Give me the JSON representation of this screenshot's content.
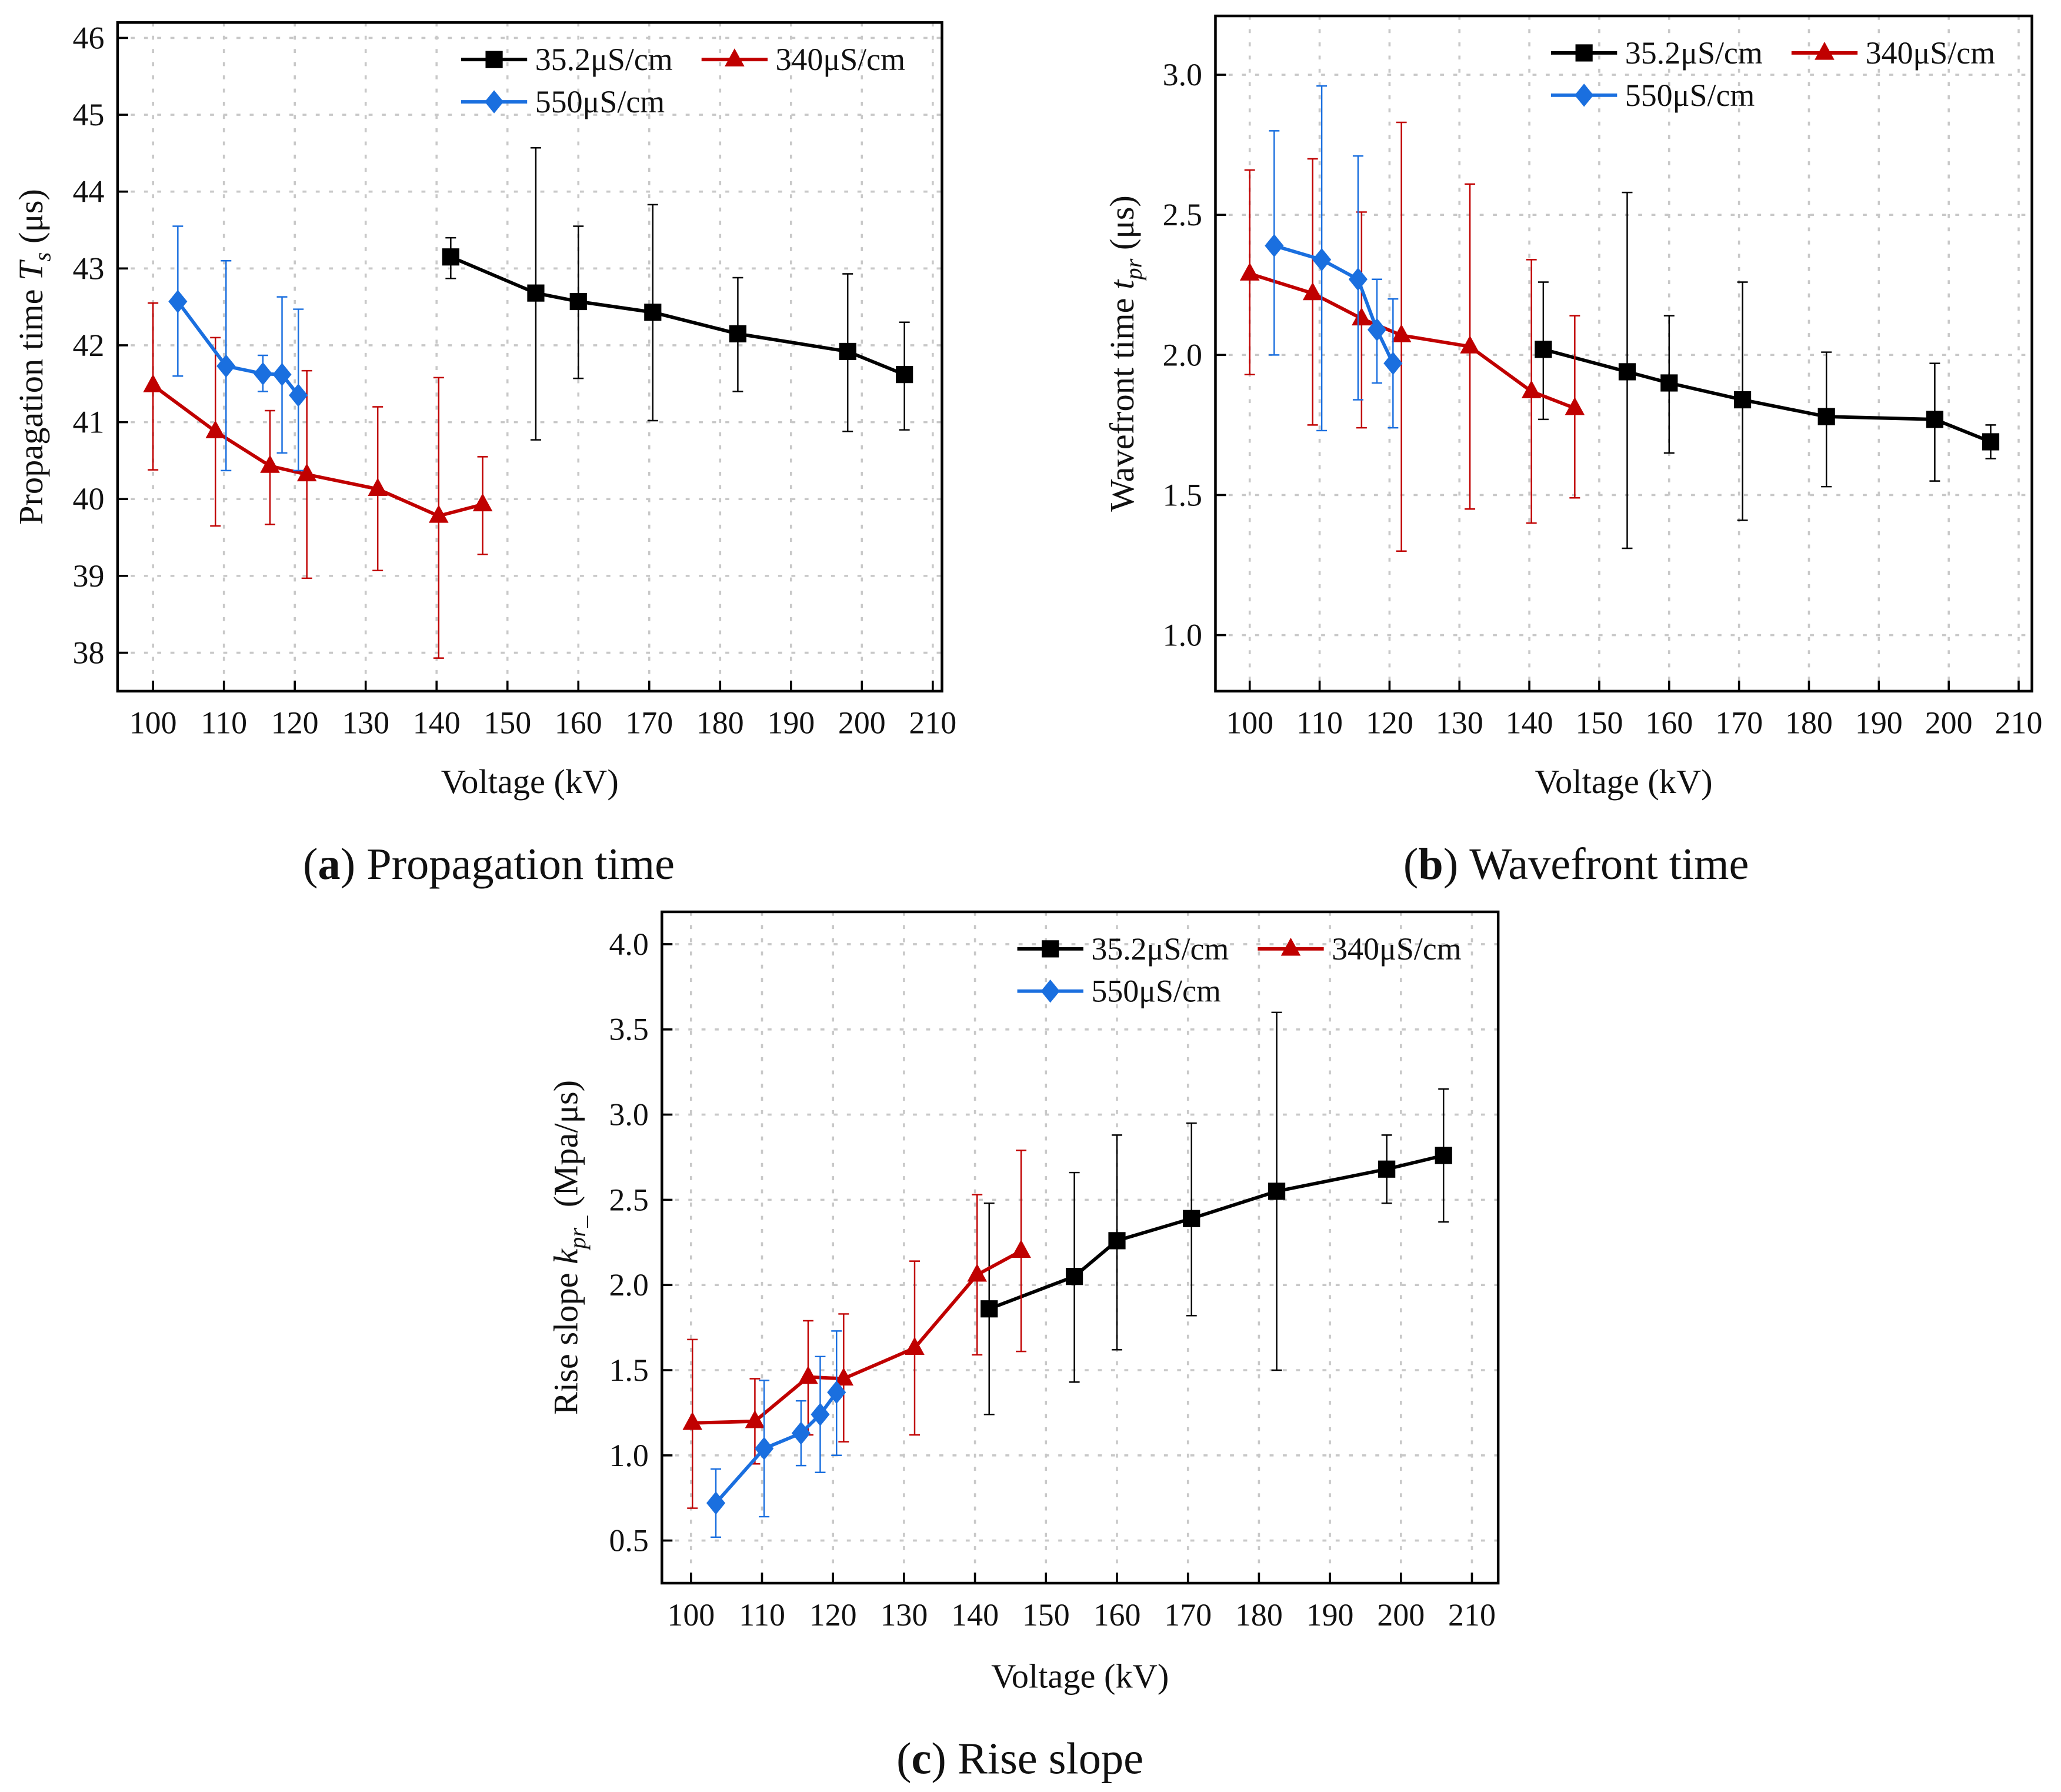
{
  "colors": {
    "black_series": "#000000",
    "red_series": "#c00000",
    "blue_series": "#1a6fdf",
    "grid": "#c8c8c8"
  },
  "chart_data": [
    {
      "type": "line",
      "panel": "a",
      "caption_label": "a",
      "caption_text": "Propagation time",
      "xlabel": "Voltage (kV)",
      "ylabel_prefix": "Propagation time ",
      "ylabel_symbol": "T",
      "ylabel_sub": "s",
      "ylabel_suffix": " (μs)",
      "xlim": [
        95,
        211.3
      ],
      "ylim": [
        37.5,
        46.2
      ],
      "xticks": [
        100,
        110,
        120,
        130,
        140,
        150,
        160,
        170,
        180,
        190,
        200,
        210
      ],
      "yticks": [
        38,
        39,
        40,
        41,
        42,
        43,
        44,
        45,
        46
      ],
      "ytick_labels": [
        "38",
        "39",
        "40",
        "41",
        "42",
        "43",
        "44",
        "45",
        "46"
      ],
      "grid": true,
      "legend_position": "top-right",
      "series": [
        {
          "name": "35.2μS/cm",
          "color": "#000000",
          "marker": "square",
          "x": [
            142,
            154,
            160,
            170.5,
            182.5,
            198,
            206
          ],
          "y": [
            43.15,
            42.68,
            42.57,
            42.43,
            42.15,
            41.92,
            41.62
          ],
          "err_low": [
            42.87,
            40.77,
            41.57,
            41.02,
            41.4,
            40.88,
            40.9
          ],
          "err_high": [
            43.4,
            44.57,
            43.55,
            43.83,
            42.88,
            42.93,
            42.3
          ]
        },
        {
          "name": "340μS/cm",
          "color": "#c00000",
          "marker": "triangle",
          "x": [
            100,
            108.8,
            116.5,
            121.7,
            131.7,
            140.3,
            146.5
          ],
          "y": [
            41.48,
            40.88,
            40.43,
            40.32,
            40.13,
            39.78,
            39.93
          ],
          "err_low": [
            40.38,
            39.65,
            39.67,
            38.97,
            39.07,
            37.93,
            39.28
          ],
          "err_high": [
            42.55,
            42.1,
            41.15,
            41.67,
            41.2,
            41.58,
            40.55
          ]
        },
        {
          "name": "550μS/cm",
          "color": "#1a6fdf",
          "marker": "diamond",
          "x": [
            103.5,
            110.3,
            115.5,
            118.2,
            120.5
          ],
          "y": [
            42.57,
            41.73,
            41.63,
            41.62,
            41.35
          ],
          "err_low": [
            41.6,
            40.37,
            41.4,
            40.6,
            40.37
          ],
          "err_high": [
            43.55,
            43.1,
            41.87,
            42.63,
            42.47
          ]
        }
      ]
    },
    {
      "type": "line",
      "panel": "b",
      "caption_label": "b",
      "caption_text": "Wavefront time",
      "xlabel": "Voltage (kV)",
      "ylabel_prefix": "Wavefront time ",
      "ylabel_symbol": "t",
      "ylabel_sub": "pr",
      "ylabel_suffix": " (μs)",
      "xlim": [
        95.1,
        211.9
      ],
      "ylim": [
        0.8,
        3.21
      ],
      "xticks": [
        100,
        110,
        120,
        130,
        140,
        150,
        160,
        170,
        180,
        190,
        200,
        210
      ],
      "yticks": [
        1.0,
        1.5,
        2.0,
        2.5,
        3.0
      ],
      "ytick_labels": [
        "1.0",
        "1.5",
        "2.0",
        "2.5",
        "3.0"
      ],
      "grid": true,
      "legend_position": "top-right",
      "series": [
        {
          "name": "35.2μS/cm",
          "color": "#000000",
          "marker": "square",
          "x": [
            142,
            154,
            160,
            170.5,
            182.5,
            198,
            206
          ],
          "y": [
            2.02,
            1.94,
            1.9,
            1.84,
            1.78,
            1.77,
            1.69
          ],
          "err_low": [
            1.77,
            1.31,
            1.65,
            1.41,
            1.53,
            1.55,
            1.63
          ],
          "err_high": [
            2.26,
            2.58,
            2.14,
            2.26,
            2.01,
            1.97,
            1.75
          ]
        },
        {
          "name": "340μS/cm",
          "color": "#c00000",
          "marker": "triangle",
          "x": [
            100,
            109,
            116,
            121.7,
            131.5,
            140.3,
            146.5
          ],
          "y": [
            2.29,
            2.22,
            2.13,
            2.07,
            2.03,
            1.87,
            1.81
          ],
          "err_low": [
            1.93,
            1.75,
            1.74,
            1.3,
            1.45,
            1.4,
            1.49
          ],
          "err_high": [
            2.66,
            2.7,
            2.51,
            2.83,
            2.61,
            2.34,
            2.14
          ]
        },
        {
          "name": "550μS/cm",
          "color": "#1a6fdf",
          "marker": "diamond",
          "x": [
            103.5,
            110.3,
            115.5,
            118.2,
            120.5
          ],
          "y": [
            2.39,
            2.34,
            2.27,
            2.09,
            1.97
          ],
          "err_low": [
            2.0,
            1.73,
            1.84,
            1.9,
            1.74
          ],
          "err_high": [
            2.8,
            2.96,
            2.71,
            2.27,
            2.2
          ]
        }
      ]
    },
    {
      "type": "line",
      "panel": "c",
      "caption_label": "c",
      "caption_text": "Rise slope",
      "xlabel": "Voltage (kV)",
      "ylabel_prefix": "Rise slope ",
      "ylabel_symbol": "k",
      "ylabel_sub": "pr_",
      "ylabel_suffix": " (Mpa/μs)",
      "xlim": [
        95.9,
        213.7
      ],
      "ylim": [
        0.25,
        4.19
      ],
      "xticks": [
        100,
        110,
        120,
        130,
        140,
        150,
        160,
        170,
        180,
        190,
        200,
        210
      ],
      "yticks": [
        0.5,
        1.0,
        1.5,
        2.0,
        2.5,
        3.0,
        3.5,
        4.0
      ],
      "ytick_labels": [
        "0.5",
        "1.0",
        "1.5",
        "2.0",
        "2.5",
        "3.0",
        "3.5",
        "4.0"
      ],
      "grid": true,
      "legend_position": "top-right",
      "series": [
        {
          "name": "35.2μS/cm",
          "color": "#000000",
          "marker": "square",
          "x": [
            142,
            154,
            160,
            170.5,
            182.5,
            198,
            206
          ],
          "y": [
            1.86,
            2.05,
            2.26,
            2.39,
            2.55,
            2.68,
            2.76
          ],
          "err_low": [
            1.24,
            1.43,
            1.62,
            1.82,
            1.5,
            2.48,
            2.37
          ],
          "err_high": [
            2.48,
            2.66,
            2.88,
            2.95,
            3.6,
            2.88,
            3.15
          ]
        },
        {
          "name": "340μS/cm",
          "color": "#c00000",
          "marker": "triangle",
          "x": [
            100.2,
            109,
            116.5,
            121.5,
            131.5,
            140.3,
            146.5
          ],
          "y": [
            1.19,
            1.2,
            1.46,
            1.45,
            1.63,
            2.06,
            2.2
          ],
          "err_low": [
            0.69,
            0.95,
            1.12,
            1.08,
            1.12,
            1.59,
            1.61
          ],
          "err_high": [
            1.68,
            1.45,
            1.79,
            1.83,
            2.14,
            2.53,
            2.79
          ]
        },
        {
          "name": "550μS/cm",
          "color": "#1a6fdf",
          "marker": "diamond",
          "x": [
            103.5,
            110.3,
            115.5,
            118.2,
            120.5
          ],
          "y": [
            0.72,
            1.04,
            1.13,
            1.24,
            1.37
          ],
          "err_low": [
            0.52,
            0.64,
            0.94,
            0.9,
            1.0
          ],
          "err_high": [
            0.92,
            1.44,
            1.32,
            1.58,
            1.73
          ]
        }
      ]
    }
  ]
}
